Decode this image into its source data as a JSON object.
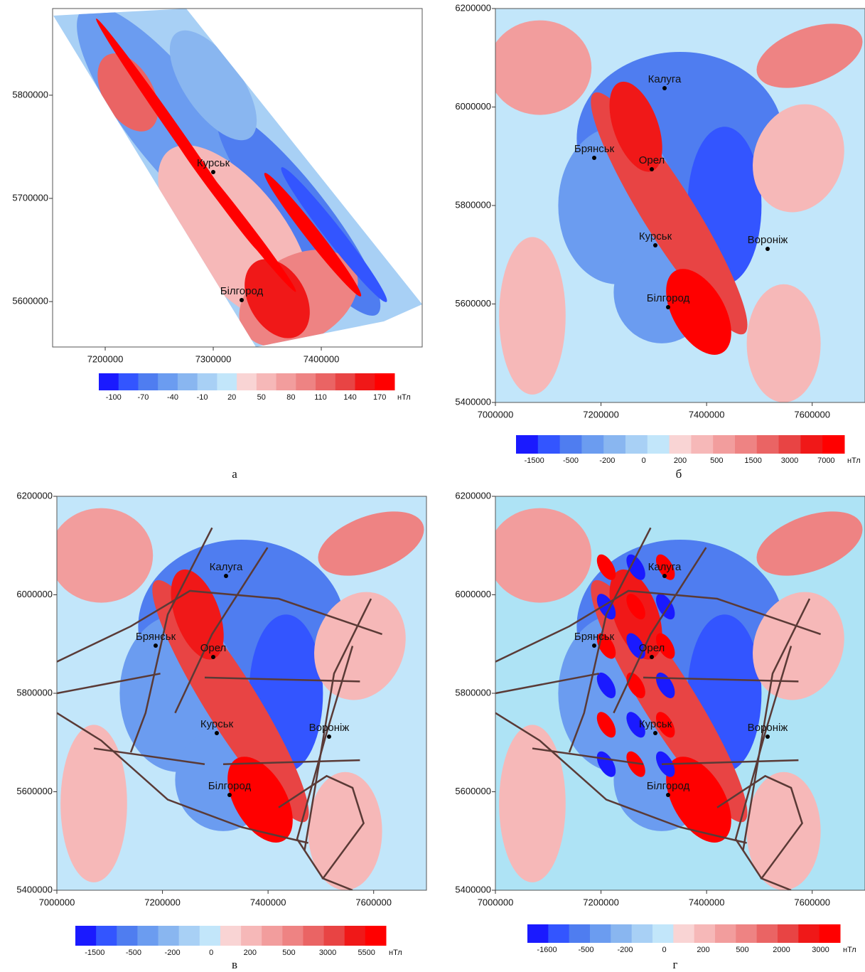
{
  "palette": [
    "#1a1aff",
    "#3355ff",
    "#4f7df0",
    "#6b9cf0",
    "#89b6f0",
    "#a8d0f5",
    "#c2e6fa",
    "#f9d4d4",
    "#f6b8b8",
    "#f29d9d",
    "#ee8383",
    "#ea6464",
    "#e84444",
    "#f01818",
    "#ff0000"
  ],
  "panels": [
    {
      "label": "а",
      "xlim": [
        7151300,
        7493400
      ],
      "ylim": [
        5556000,
        5884000
      ],
      "xticks": [
        7200000,
        7300000,
        7400000
      ],
      "yticks": [
        5600000,
        5700000,
        5800000
      ],
      "cities": [
        "Курськ",
        "Білгород"
      ],
      "colorbar": {
        "ticks": [
          -100,
          -70,
          -40,
          -10,
          20,
          50,
          80,
          110,
          140,
          170
        ],
        "unit": "нТл"
      }
    },
    {
      "label": "б",
      "xlim": [
        7000000,
        7700000
      ],
      "ylim": [
        5400000,
        6200000
      ],
      "xticks": [
        7000000,
        7200000,
        7400000,
        7600000
      ],
      "yticks": [
        5400000,
        5600000,
        5800000,
        6000000,
        6200000
      ],
      "cities": [
        "Калуга",
        "Брянськ",
        "Орел",
        "Курськ",
        "Воронiж",
        "Білгород"
      ],
      "colorbar": {
        "ticks": [
          -1500,
          -500,
          -200,
          0,
          200,
          500,
          1500,
          3000,
          7000
        ],
        "unit": "нТл"
      }
    },
    {
      "label": "в",
      "xlim": [
        7000000,
        7700000
      ],
      "ylim": [
        5400000,
        6200000
      ],
      "xticks": [
        7000000,
        7200000,
        7400000,
        7600000
      ],
      "yticks": [
        5400000,
        5600000,
        5800000,
        6000000,
        6200000
      ],
      "cities": [
        "Калуга",
        "Брянськ",
        "Орел",
        "Курськ",
        "Воронiж",
        "Білгород"
      ],
      "colorbar": {
        "ticks": [
          -1500,
          -500,
          -200,
          0,
          200,
          500,
          3000,
          5500
        ],
        "unit": "нТл"
      }
    },
    {
      "label": "г",
      "xlim": [
        7000000,
        7700000
      ],
      "ylim": [
        5400000,
        6200000
      ],
      "xticks": [
        7000000,
        7200000,
        7400000,
        7600000
      ],
      "yticks": [
        5400000,
        5600000,
        5800000,
        6000000,
        6200000
      ],
      "cities": [
        "Калуга",
        "Брянськ",
        "Орел",
        "Курськ",
        "Воронiж",
        "Білгород"
      ],
      "colorbar": {
        "ticks": [
          -1600,
          -500,
          -200,
          0,
          200,
          500,
          2000,
          3000
        ],
        "unit": "нТл"
      }
    }
  ]
}
